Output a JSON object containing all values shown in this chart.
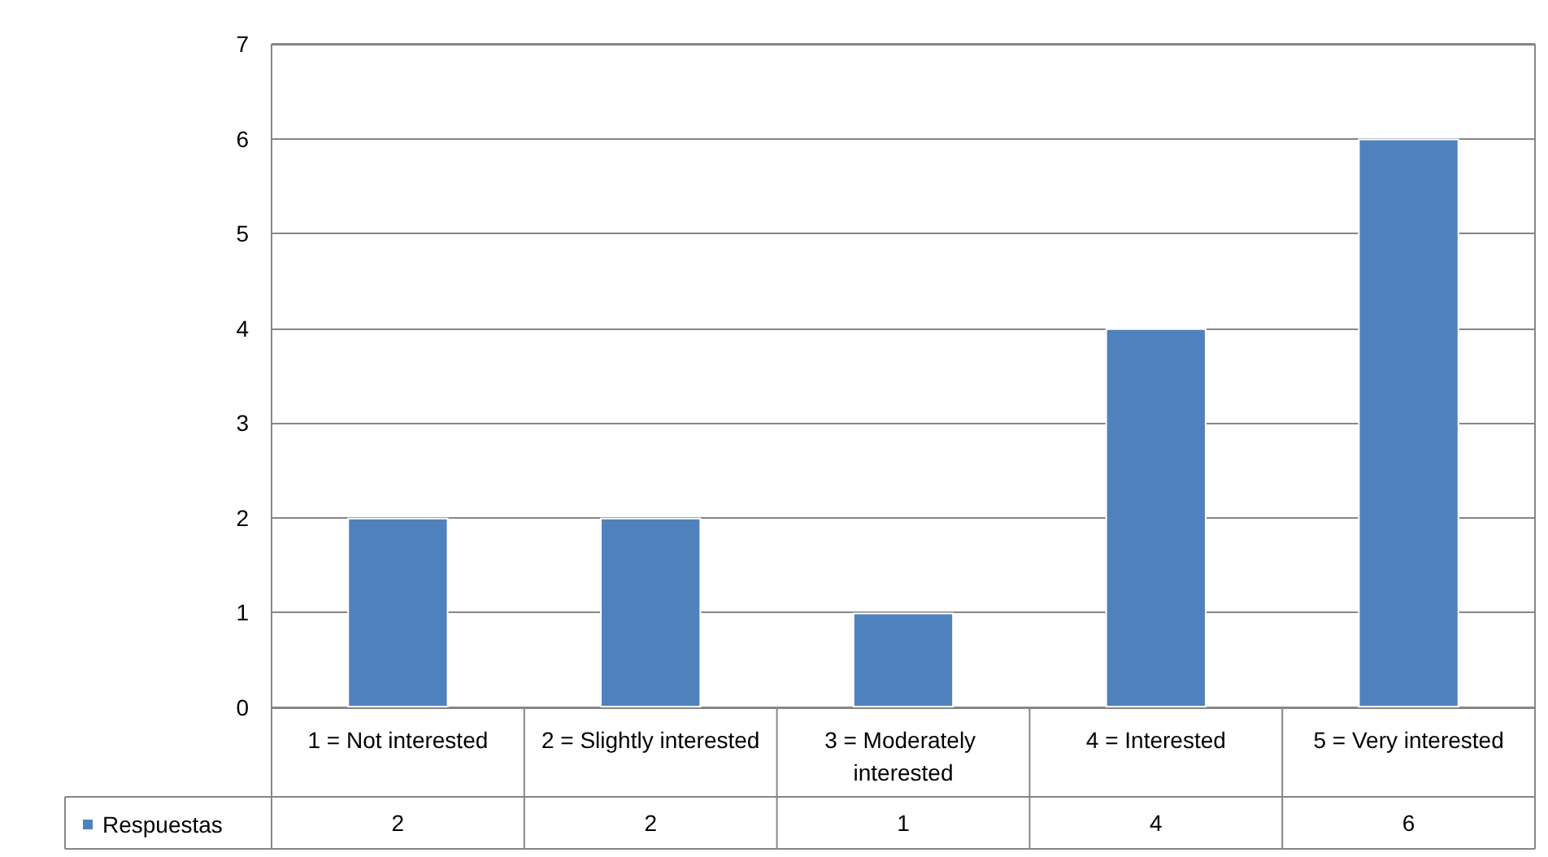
{
  "chart_data": {
    "type": "bar",
    "categories": [
      "1 = Not interested",
      "2 = Slightly interested",
      "3 = Moderately interested",
      "4 = Interested",
      "5 = Very interested"
    ],
    "series": [
      {
        "name": "Respuestas",
        "color": "#4f81bd",
        "values": [
          2,
          2,
          1,
          4,
          6
        ]
      }
    ],
    "ylim": [
      0,
      7
    ],
    "yticks": [
      0,
      1,
      2,
      3,
      4,
      5,
      6,
      7
    ],
    "grid": "y",
    "legend": "bottom left",
    "data_labels": true
  }
}
